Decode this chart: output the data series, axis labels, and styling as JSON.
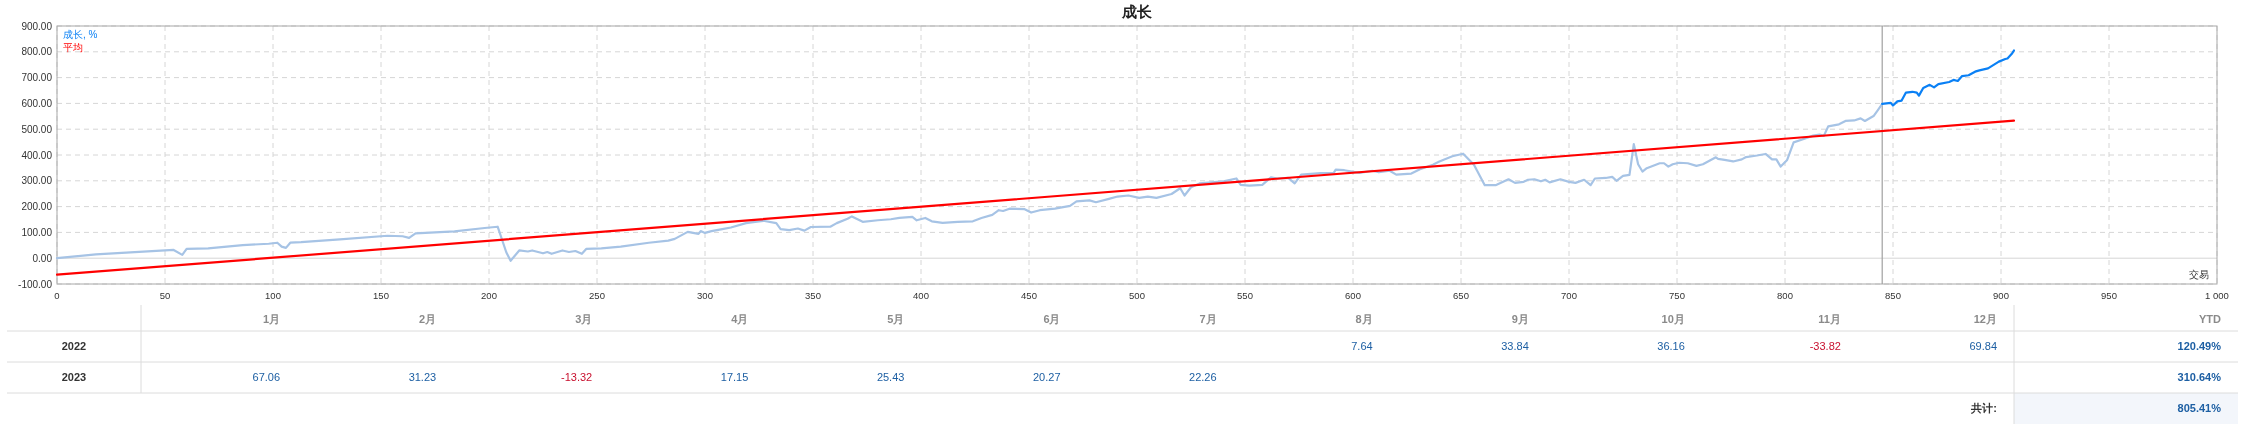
{
  "chart_data": [
    {
      "type": "line",
      "title": "成长",
      "xlabel": "交易",
      "series": [
        {
          "color": "#a6c3e5",
          "x": [
            0,
            18,
            50,
            54,
            58,
            60,
            70,
            86,
            98,
            102,
            104,
            106,
            108,
            113,
            131,
            153,
            160,
            163,
            166,
            184,
            198,
            204,
            208,
            210,
            214,
            218,
            220,
            225,
            227,
            229,
            234,
            237,
            240,
            243,
            245,
            252,
            261,
            274,
            283,
            286,
            292,
            297,
            298,
            300,
            303,
            308,
            312,
            319,
            325,
            327,
            333,
            335,
            339,
            343,
            346,
            349,
            358,
            361,
            366,
            368,
            373,
            380,
            386,
            390,
            396,
            398,
            402,
            405,
            410,
            417,
            424,
            428,
            433,
            436,
            438,
            441,
            448,
            451,
            455,
            462,
            469,
            472,
            478,
            481,
            487,
            491,
            496,
            501,
            505,
            509,
            516,
            520,
            522,
            525,
            529,
            540,
            546,
            548,
            552,
            558,
            562,
            565,
            570,
            573,
            576,
            585,
            591,
            592,
            596,
            603,
            609,
            612,
            617,
            620,
            627,
            631,
            637,
            640,
            646,
            651,
            656,
            661,
            666,
            672,
            675,
            679,
            681,
            684,
            687,
            689,
            691,
            696,
            700,
            703,
            707,
            710,
            712,
            717,
            720,
            722,
            725,
            728,
            730,
            732,
            734,
            736,
            742,
            744,
            746,
            748,
            751,
            755,
            759,
            762,
            768,
            769,
            772,
            776,
            780,
            782,
            787,
            791,
            794,
            796,
            798,
            801,
            804,
            808,
            813,
            816,
            818,
            820,
            825,
            828,
            832,
            835,
            837,
            841,
            843,
            845
          ],
          "values": [
            0,
            15,
            30,
            32,
            13,
            36,
            38,
            51,
            56,
            60,
            45,
            40,
            60,
            62,
            73,
            87,
            85,
            79,
            96,
            104,
            117,
            122,
            23,
            -10,
            30,
            26,
            30,
            19,
            24,
            17,
            30,
            24,
            28,
            17,
            36,
            38,
            45,
            60,
            68,
            75,
            102,
            94,
            105,
            98,
            105,
            113,
            119,
            136,
            143,
            145,
            136,
            113,
            109,
            115,
            107,
            121,
            122,
            136,
            153,
            162,
            141,
            147,
            151,
            156,
            160,
            147,
            156,
            143,
            137,
            141,
            143,
            156,
            168,
            186,
            183,
            192,
            190,
            177,
            186,
            192,
            203,
            220,
            224,
            217,
            230,
            239,
            243,
            234,
            239,
            234,
            249,
            271,
            243,
            275,
            290,
            298,
            309,
            284,
            281,
            284,
            313,
            309,
            311,
            290,
            324,
            330,
            330,
            343,
            341,
            331,
            339,
            333,
            339,
            324,
            328,
            345,
            362,
            375,
            395,
            405,
            362,
            283,
            283,
            306,
            292,
            296,
            304,
            306,
            298,
            304,
            294,
            306,
            296,
            292,
            304,
            283,
            309,
            311,
            315,
            300,
            319,
            323,
            442,
            364,
            336,
            349,
            368,
            368,
            355,
            364,
            370,
            368,
            358,
            364,
            391,
            385,
            381,
            375,
            383,
            392,
            398,
            404,
            383,
            383,
            355,
            381,
            449,
            460,
            475,
            479,
            474,
            511,
            519,
            532,
            534,
            542,
            532,
            551,
            574,
            598
          ]
        },
        {
          "name": "成长, %",
          "color": "#0a80f5",
          "x": [
            845,
            849,
            850,
            852,
            854,
            856,
            859,
            861,
            862,
            864,
            867,
            869,
            871,
            876,
            878,
            880,
            882,
            885,
            888,
            890,
            894,
            899,
            902,
            903,
            905,
            906
          ],
          "values": [
            598,
            602,
            592,
            608,
            611,
            642,
            645,
            642,
            630,
            660,
            672,
            662,
            675,
            683,
            691,
            687,
            706,
            709,
            723,
            728,
            736,
            762,
            772,
            774,
            792,
            805
          ]
        },
        {
          "name": "平均",
          "color": "#ff0000",
          "x": [
            0,
            906
          ],
          "values": [
            -64,
            533
          ]
        }
      ],
      "xlim": [
        0,
        1000
      ],
      "xticks": [
        0,
        50,
        100,
        150,
        200,
        250,
        300,
        350,
        400,
        450,
        500,
        550,
        600,
        650,
        700,
        750,
        800,
        850,
        900,
        950,
        {
          "value": 1000,
          "label": "1 000"
        }
      ],
      "ylim": [
        -100,
        900
      ],
      "yticks": [
        {
          "value": -100,
          "label": "-100.00"
        },
        {
          "value": 0,
          "label": "0.00"
        },
        {
          "value": 100,
          "label": "100.00"
        },
        {
          "value": 200,
          "label": "200.00"
        },
        {
          "value": 300,
          "label": "300.00"
        },
        {
          "value": 400,
          "label": "400.00"
        },
        {
          "value": 500,
          "label": "500.00"
        },
        {
          "value": 600,
          "label": "600.00"
        },
        {
          "value": 700,
          "label": "700.00"
        },
        {
          "value": 800,
          "label": "800.00"
        },
        {
          "value": 900,
          "label": "900.00"
        }
      ],
      "grid": true,
      "legend": "top left",
      "ref_lines": [
        {
          "axis": "x",
          "value": 845,
          "color": "#a0a0a0"
        }
      ]
    },
    {
      "type": "heatmap",
      "categories": [
        "1月",
        "2月",
        "3月",
        "4月",
        "5月",
        "6月",
        "7月",
        "8月",
        "9月",
        "10月",
        "11月",
        "12月",
        "YTD"
      ],
      "y_categories": [
        "2022",
        "2023",
        null
      ],
      "cells": [
        [
          null,
          null,
          null,
          null,
          null,
          null,
          null,
          7.64,
          33.84,
          36.16,
          -33.82,
          69.84,
          120.49
        ],
        [
          67.06,
          31.23,
          -13.32,
          17.15,
          25.43,
          20.27,
          22.26,
          null,
          null,
          null,
          null,
          null,
          310.64
        ],
        [
          null,
          null,
          null,
          null,
          null,
          null,
          null,
          null,
          null,
          null,
          null,
          null,
          805.41
        ]
      ],
      "cell_labels": [
        [
          null,
          null,
          null,
          null,
          null,
          null,
          null,
          "7.64",
          "33.84",
          "36.16",
          "-33.82",
          "69.84",
          "120.49%"
        ],
        [
          "67.06",
          "31.23",
          "-13.32",
          "17.15",
          "25.43",
          "20.27",
          "22.26",
          null,
          null,
          null,
          null,
          null,
          "310.64%"
        ],
        [
          null,
          null,
          null,
          null,
          null,
          null,
          null,
          null,
          null,
          null,
          null,
          null,
          "805.41%"
        ]
      ],
      "annotations": [
        "共计:"
      ]
    }
  ]
}
